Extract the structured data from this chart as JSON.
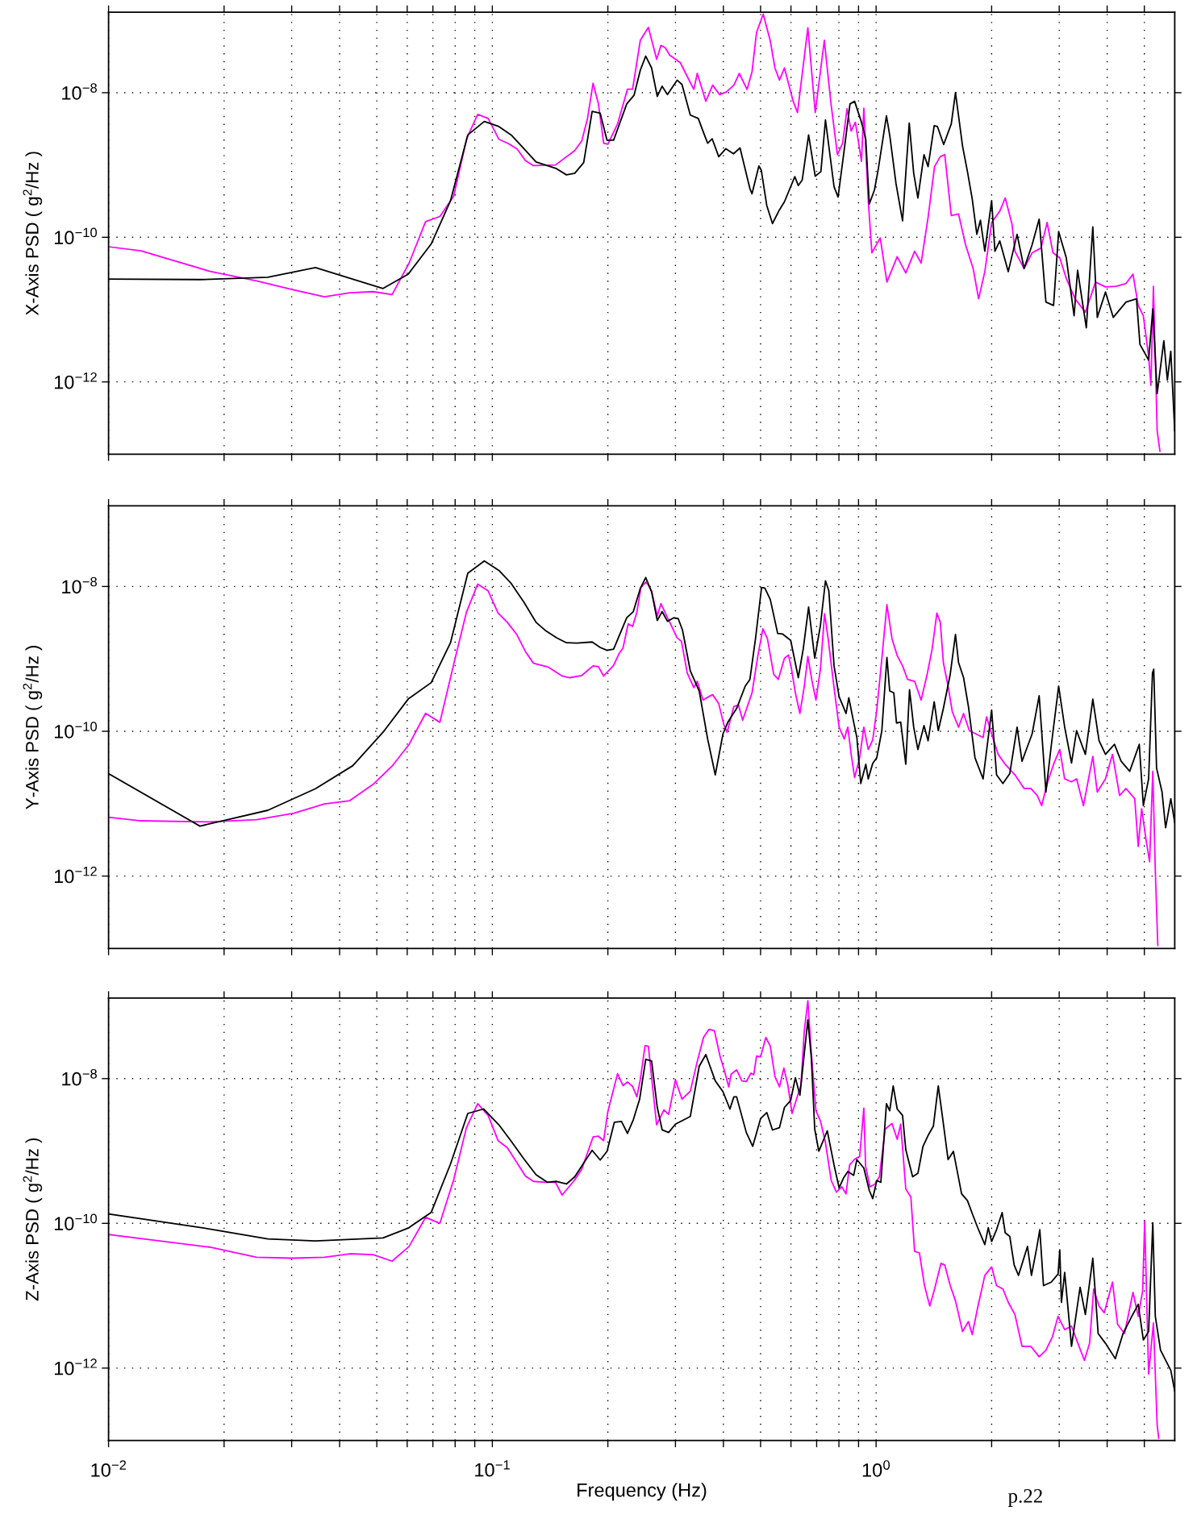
{
  "chart_data": [
    {
      "type": "line",
      "ylabel": "X-Axis PSD ( g$^{2}$/Hz )",
      "log": "xy",
      "grid": true,
      "tick_labels": "y",
      "xlim": [
        0.01,
        6
      ],
      "ylim": [
        1e-13,
        1.3e-07
      ],
      "xticks": [
        {
          "value": 0.01,
          "label": null
        },
        {
          "value": 0.02,
          "label": null
        },
        {
          "value": 0.03,
          "label": null
        },
        {
          "value": 0.04,
          "label": null
        },
        {
          "value": 0.05,
          "label": null
        },
        {
          "value": 0.06,
          "label": null
        },
        {
          "value": 0.07,
          "label": null
        },
        {
          "value": 0.08,
          "label": null
        },
        {
          "value": 0.09,
          "label": null
        },
        {
          "value": 0.1,
          "label": null
        },
        {
          "value": 0.2,
          "label": null
        },
        {
          "value": 0.3,
          "label": null
        },
        {
          "value": 0.4,
          "label": null
        },
        {
          "value": 0.5,
          "label": null
        },
        {
          "value": 0.6,
          "label": null
        },
        {
          "value": 0.7,
          "label": null
        },
        {
          "value": 0.8,
          "label": null
        },
        {
          "value": 0.9,
          "label": null
        },
        {
          "value": 1,
          "label": null
        },
        {
          "value": 2,
          "label": null
        },
        {
          "value": 3,
          "label": null
        },
        {
          "value": 4,
          "label": null
        },
        {
          "value": 5,
          "label": null
        }
      ],
      "yticks": [
        {
          "value": 1e-12,
          "label": "10$^{−12}$"
        },
        {
          "value": 1e-10,
          "label": "10$^{−10}$"
        },
        {
          "value": 1e-08,
          "label": "10$^{−8}$"
        }
      ],
      "series": [
        {
          "color": "#ff00ff",
          "x": [
            0.01,
            0.01215,
            0.0183,
            0.0243,
            0.0301,
            0.0365,
            0.0425,
            0.0489,
            0.0548,
            0.0607,
            0.067,
            0.073,
            0.0793,
            0.0858,
            0.0916,
            0.0975,
            0.104,
            0.11,
            0.116,
            0.122,
            0.128,
            0.146,
            0.164,
            0.171,
            0.177,
            0.183,
            0.189,
            0.195,
            0.2,
            0.212,
            0.225,
            0.232,
            0.243,
            0.255,
            0.268,
            0.275,
            0.282,
            0.29,
            0.309,
            0.319,
            0.335,
            0.342,
            0.36,
            0.375,
            0.391,
            0.407,
            0.426,
            0.44,
            0.461,
            0.475,
            0.488,
            0.508,
            0.53,
            0.545,
            0.56,
            0.577,
            0.608,
            0.624,
            0.664,
            0.694,
            0.733,
            0.762,
            0.793,
            0.818,
            0.84,
            0.861,
            0.883,
            0.916,
            0.929,
            0.954,
            0.975,
            1.025,
            1.067,
            1.135,
            1.195,
            1.26,
            1.31,
            1.366,
            1.42,
            1.47,
            1.51,
            1.57,
            1.64,
            1.71,
            1.79,
            1.85,
            1.92,
            2.0,
            2.1,
            2.17,
            2.26,
            2.3,
            2.43,
            2.55,
            2.69,
            2.79,
            2.89,
            3.01,
            3.13,
            3.3,
            3.51,
            3.73,
            3.96,
            4.22,
            4.48,
            4.67,
            4.82,
            4.97,
            5.13,
            5.2,
            5.28,
            5.4,
            5.49
          ],
          "values": [
            7.4e-11,
            6.5e-11,
            3.4e-11,
            2.5e-11,
            1.89e-11,
            1.5e-11,
            1.71e-11,
            1.77e-11,
            1.61e-11,
            4.4e-11,
            1.65e-10,
            1.94e-10,
            3.7e-10,
            2.35e-09,
            5e-09,
            4.4e-09,
            2.27e-09,
            1.98e-09,
            1.67e-09,
            1.15e-09,
            9.8e-10,
            1e-09,
            1.58e-09,
            2.15e-09,
            4.4e-09,
            1.35e-08,
            7e-09,
            2e-09,
            1.94e-09,
            3.7e-09,
            1.12e-08,
            1.12e-08,
            5.3e-08,
            8e-08,
            2.9e-08,
            4.5e-08,
            4.2e-08,
            3.3e-08,
            2.6e-08,
            1.85e-08,
            1.11e-08,
            1.85e-08,
            7.6e-09,
            1.27e-08,
            9.4e-09,
            1.02e-08,
            1.27e-08,
            1.85e-08,
            1.11e-08,
            1.95e-08,
            6.8e-08,
            1.22e-07,
            5.2e-08,
            2.2e-08,
            1.49e-08,
            2.2e-08,
            7.6e-09,
            5.3e-09,
            7.9e-08,
            5.3e-09,
            5.3e-08,
            7.4e-09,
            1.39e-09,
            2e-09,
            6e-09,
            2.95e-09,
            3.9e-09,
            1.12e-09,
            6.1e-09,
            3.2e-10,
            6.1e-11,
            9.8e-11,
            2.4e-11,
            5.4e-11,
            3.2e-11,
            6.4e-11,
            4.4e-11,
            1.88e-10,
            9.5e-10,
            1.31e-09,
            1.39e-09,
            2e-10,
            2.1e-10,
            7.9e-11,
            3.7e-11,
            1.41e-11,
            3.35e-11,
            1.6e-10,
            2.3e-10,
            3.5e-10,
            1.52e-10,
            6.4e-11,
            3.7e-11,
            6.1e-11,
            7.1e-11,
            1.6e-10,
            6.1e-11,
            5.2e-11,
            2.7e-11,
            1.41e-11,
            9.2e-12,
            2.4e-11,
            2.06e-11,
            2.1e-11,
            2.3e-11,
            3.1e-11,
            1.14e-11,
            8.2e-12,
            2.25e-12,
            9e-13,
            2.1e-11,
            2.1e-13,
            1.1e-13
          ]
        },
        {
          "color": "#000000",
          "x": [
            0.01,
            0.0173,
            0.026,
            0.0346,
            0.0519,
            0.0604,
            0.0693,
            0.0778,
            0.0863,
            0.0953,
            0.104,
            0.112,
            0.121,
            0.13,
            0.147,
            0.156,
            0.164,
            0.173,
            0.182,
            0.191,
            0.199,
            0.207,
            0.224,
            0.234,
            0.243,
            0.251,
            0.26,
            0.269,
            0.277,
            0.286,
            0.303,
            0.312,
            0.328,
            0.344,
            0.357,
            0.364,
            0.374,
            0.389,
            0.406,
            0.425,
            0.442,
            0.469,
            0.475,
            0.495,
            0.502,
            0.519,
            0.537,
            0.56,
            0.577,
            0.614,
            0.627,
            0.642,
            0.667,
            0.694,
            0.718,
            0.738,
            0.777,
            0.796,
            0.826,
            0.855,
            0.879,
            0.916,
            0.94,
            0.96,
            0.99,
            1.014,
            1.064,
            1.086,
            1.127,
            1.172,
            1.22,
            1.253,
            1.285,
            1.333,
            1.366,
            1.417,
            1.445,
            1.5,
            1.57,
            1.61,
            1.68,
            1.73,
            1.78,
            1.83,
            1.87,
            1.92,
            2.0,
            2.04,
            2.1,
            2.21,
            2.33,
            2.43,
            2.55,
            2.66,
            2.77,
            2.9,
            2.99,
            3.13,
            3.28,
            3.35,
            3.53,
            3.67,
            3.77,
            3.96,
            4.15,
            4.48,
            4.77,
            4.87,
            5.13,
            5.26,
            5.4,
            5.62,
            5.74,
            5.86,
            6.0
          ],
          "values": [
            2.64e-11,
            2.6e-11,
            2.8e-11,
            3.8e-11,
            1.96e-11,
            3.1e-11,
            8.1e-11,
            3.2e-10,
            2.6e-09,
            4e-09,
            3.4e-09,
            2.6e-09,
            1.67e-09,
            1.1e-09,
            8.9e-10,
            7.3e-10,
            7.7e-10,
            1.08e-09,
            5.5e-09,
            5.2e-09,
            2.2e-09,
            2.2e-09,
            7e-09,
            9.2e-09,
            2.05e-08,
            3.2e-08,
            2.2e-08,
            8.9e-09,
            1.23e-08,
            9.4e-09,
            1.49e-08,
            1.3e-08,
            4.9e-09,
            4.4e-09,
            2.6e-09,
            2e-09,
            2.3e-09,
            1.3e-09,
            1.68e-09,
            1.43e-09,
            1.72e-09,
            4.7e-10,
            4e-10,
            9.7e-10,
            8.5e-10,
            2.75e-10,
            1.55e-10,
            2.4e-10,
            3.1e-10,
            6.9e-10,
            5.2e-10,
            6.2e-10,
            2.6e-09,
            7e-10,
            8.1e-10,
            4.2e-09,
            5e-10,
            3.6e-10,
            1.63e-09,
            7e-09,
            7.6e-09,
            3.9e-09,
            2.25e-09,
            2.9e-10,
            4.5e-10,
            9e-10,
            4.8e-09,
            2.5e-09,
            5.5e-10,
            1.69e-10,
            3.8e-09,
            7.7e-10,
            3.5e-10,
            1.39e-09,
            9.5e-10,
            3.5e-09,
            3.4e-09,
            1.92e-09,
            3.7e-09,
            1e-08,
            1.82e-09,
            8.1e-10,
            3.4e-10,
            1.1e-10,
            1.72e-10,
            6.4e-11,
            3.2e-10,
            6.4e-11,
            8.9e-11,
            3.35e-11,
            1.1e-10,
            3.7e-11,
            7.9e-11,
            1.78e-10,
            1.27e-11,
            1.14e-11,
            1.2e-10,
            5.2e-11,
            8.2e-12,
            3.5e-11,
            5.6e-12,
            1.39e-10,
            7.8e-12,
            1.75e-11,
            7.8e-12,
            1.27e-11,
            1.41e-11,
            3.3e-12,
            2e-12,
            1.02e-11,
            6.9e-13,
            3.7e-12,
            1.06e-12,
            2.65e-12,
            2.1e-13
          ]
        }
      ]
    },
    {
      "type": "line",
      "ylabel": "Y-Axis PSD ( g$^{2}$/Hz )",
      "log": "xy",
      "grid": true,
      "tick_labels": "y",
      "xlim": [
        0.01,
        6
      ],
      "ylim": [
        1e-13,
        1.3e-07
      ],
      "xticks": [
        {
          "value": 0.01,
          "label": null
        },
        {
          "value": 0.02,
          "label": null
        },
        {
          "value": 0.03,
          "label": null
        },
        {
          "value": 0.04,
          "label": null
        },
        {
          "value": 0.05,
          "label": null
        },
        {
          "value": 0.06,
          "label": null
        },
        {
          "value": 0.07,
          "label": null
        },
        {
          "value": 0.08,
          "label": null
        },
        {
          "value": 0.09,
          "label": null
        },
        {
          "value": 0.1,
          "label": null
        },
        {
          "value": 0.2,
          "label": null
        },
        {
          "value": 0.3,
          "label": null
        },
        {
          "value": 0.4,
          "label": null
        },
        {
          "value": 0.5,
          "label": null
        },
        {
          "value": 0.6,
          "label": null
        },
        {
          "value": 0.7,
          "label": null
        },
        {
          "value": 0.8,
          "label": null
        },
        {
          "value": 0.9,
          "label": null
        },
        {
          "value": 1,
          "label": null
        },
        {
          "value": 2,
          "label": null
        },
        {
          "value": 3,
          "label": null
        },
        {
          "value": 4,
          "label": null
        },
        {
          "value": 5,
          "label": null
        }
      ],
      "yticks": [
        {
          "value": 1e-12,
          "label": "10$^{−12}$"
        },
        {
          "value": 1e-10,
          "label": "10$^{−10}$"
        },
        {
          "value": 1e-08,
          "label": "10$^{−8}$"
        }
      ],
      "series": [
        {
          "color": "#ff00ff",
          "x": [
            0.01,
            0.01215,
            0.0183,
            0.0243,
            0.0304,
            0.0365,
            0.0425,
            0.0489,
            0.0548,
            0.0607,
            0.067,
            0.073,
            0.0793,
            0.0856,
            0.0916,
            0.0975,
            0.1035,
            0.1094,
            0.1156,
            0.122,
            0.128,
            0.14,
            0.152,
            0.159,
            0.171,
            0.183,
            0.189,
            0.195,
            0.207,
            0.214,
            0.219,
            0.226,
            0.232,
            0.238,
            0.244,
            0.252,
            0.26,
            0.269,
            0.275,
            0.286,
            0.29,
            0.303,
            0.311,
            0.322,
            0.335,
            0.342,
            0.354,
            0.366,
            0.375,
            0.389,
            0.401,
            0.409,
            0.426,
            0.438,
            0.449,
            0.475,
            0.492,
            0.507,
            0.521,
            0.541,
            0.556,
            0.577,
            0.591,
            0.601,
            0.616,
            0.633,
            0.65,
            0.664,
            0.681,
            0.697,
            0.716,
            0.734,
            0.75,
            0.777,
            0.801,
            0.826,
            0.844,
            0.861,
            0.879,
            0.906,
            0.929,
            0.954,
            0.98,
            1.004,
            1.035,
            1.067,
            1.1,
            1.135,
            1.172,
            1.208,
            1.26,
            1.31,
            1.36,
            1.4,
            1.44,
            1.47,
            1.497,
            1.54,
            1.58,
            1.64,
            1.69,
            1.75,
            1.82,
            1.9,
            1.94,
            2.0,
            2.08,
            2.17,
            2.3,
            2.43,
            2.53,
            2.63,
            2.7,
            2.8,
            2.9,
            3.01,
            3.1,
            3.23,
            3.33,
            3.47,
            3.67,
            3.77,
            3.96,
            4.13,
            4.31,
            4.48,
            4.72,
            4.82,
            4.92,
            5.05,
            5.16,
            5.26,
            5.34,
            5.42
          ],
          "values": [
            6.5e-12,
            5.8e-12,
            5.6e-12,
            6e-12,
            7.4e-12,
            9.9e-12,
            1.1e-11,
            1.85e-11,
            3.3e-11,
            6.6e-11,
            1.77e-10,
            1.33e-10,
            8.4e-10,
            4.4e-09,
            1.08e-08,
            8.7e-09,
            4.3e-09,
            3.2e-09,
            2.2e-09,
            1.26e-09,
            8.7e-10,
            7.7e-10,
            5.8e-10,
            5.5e-10,
            5.9e-10,
            8e-10,
            7.8e-10,
            5.8e-10,
            8.1e-10,
            1.19e-09,
            1.41e-09,
            3.05e-09,
            2.8e-09,
            4.4e-09,
            9.8e-09,
            1.16e-08,
            8.7e-09,
            3.9e-09,
            5.8e-09,
            3.7e-09,
            3.2e-09,
            1.95e-09,
            1.75e-09,
            6.4e-10,
            4e-10,
            4.9e-10,
            2.7e-10,
            3e-10,
            3.2e-10,
            2.4e-10,
            1.24e-10,
            9.7e-11,
            2.2e-10,
            2.3e-10,
            1.42e-10,
            3.4e-10,
            1.11e-09,
            2.6e-09,
            1.9e-09,
            6.1e-10,
            5.2e-10,
            1.02e-09,
            1.13e-09,
            7.6e-10,
            3.4e-10,
            1.76e-10,
            4.2e-10,
            1.08e-09,
            4.9e-10,
            2.7e-10,
            7.2e-10,
            4.2e-09,
            1.9e-09,
            4e-10,
            1.14e-10,
            7.8e-11,
            1.14e-10,
            4.8e-11,
            2.3e-11,
            4.3e-11,
            1.14e-10,
            5.6e-11,
            7.6e-11,
            1.96e-10,
            1e-09,
            5.6e-09,
            1.9e-09,
            1.11e-09,
            8e-10,
            5.2e-10,
            4.9e-10,
            2.7e-10,
            6.3e-10,
            1.38e-09,
            4.3e-09,
            3.2e-09,
            8.9e-10,
            4.2e-10,
            1.85e-10,
            1.14e-10,
            1.76e-10,
            1.02e-10,
            9.2e-11,
            8.2e-11,
            1.58e-10,
            9.2e-11,
            4.8e-11,
            3.5e-11,
            2.5e-11,
            1.62e-11,
            1.62e-11,
            1.3e-11,
            9.4e-12,
            2e-11,
            3.5e-11,
            5.6e-11,
            2.2e-11,
            2e-11,
            2.2e-11,
            9.4e-12,
            4.5e-11,
            1.45e-11,
            2.2e-11,
            4.8e-11,
            1.3e-11,
            1.62e-11,
            1.17e-11,
            2.56e-12,
            8.5e-12,
            3.2e-12,
            1.58e-12,
            2.8e-11,
            1.2e-12,
            1.1e-13
          ]
        },
        {
          "color": "#000000",
          "x": [
            0.01,
            0.0173,
            0.026,
            0.0346,
            0.0433,
            0.0519,
            0.0604,
            0.0693,
            0.0778,
            0.0863,
            0.0953,
            0.104,
            0.112,
            0.121,
            0.13,
            0.138,
            0.147,
            0.156,
            0.166,
            0.182,
            0.191,
            0.199,
            0.207,
            0.224,
            0.233,
            0.243,
            0.251,
            0.26,
            0.269,
            0.277,
            0.286,
            0.297,
            0.305,
            0.313,
            0.328,
            0.346,
            0.364,
            0.381,
            0.399,
            0.411,
            0.433,
            0.456,
            0.469,
            0.485,
            0.503,
            0.513,
            0.53,
            0.554,
            0.571,
            0.599,
            0.627,
            0.646,
            0.667,
            0.692,
            0.716,
            0.738,
            0.753,
            0.777,
            0.801,
            0.835,
            0.849,
            0.874,
            0.891,
            0.912,
            0.94,
            0.954,
            0.98,
            1.004,
            1.035,
            1.067,
            1.085,
            1.112,
            1.13,
            1.159,
            1.195,
            1.222,
            1.253,
            1.285,
            1.333,
            1.366,
            1.417,
            1.452,
            1.497,
            1.56,
            1.61,
            1.64,
            1.69,
            1.74,
            1.81,
            1.9,
            2.0,
            2.06,
            2.14,
            2.23,
            2.33,
            2.4,
            2.55,
            2.66,
            2.77,
            2.86,
            2.99,
            3.1,
            3.23,
            3.33,
            3.51,
            3.67,
            3.81,
            3.96,
            4.18,
            4.35,
            4.58,
            4.85,
            4.97,
            5.13,
            5.25,
            5.29,
            5.38,
            5.56,
            5.68,
            5.86,
            6.0
          ],
          "values": [
            2.6e-11,
            4.9e-12,
            8.1e-12,
            1.61e-11,
            3.35e-11,
            9.7e-11,
            2.8e-10,
            4.7e-10,
            1.67e-09,
            1.52e-08,
            2.25e-08,
            1.67e-08,
            1.1e-08,
            6e-09,
            3.2e-09,
            2.43e-09,
            1.96e-09,
            1.67e-09,
            1.65e-09,
            1.71e-09,
            1.44e-09,
            1.31e-09,
            1.36e-09,
            3.7e-09,
            4.5e-09,
            9.4e-09,
            1.33e-08,
            8.4e-09,
            3.4e-09,
            4.5e-09,
            3.3e-09,
            3.7e-09,
            3.6e-09,
            2.5e-09,
            6.8e-10,
            3.6e-10,
            7.8e-11,
            2.5e-11,
            9.2e-11,
            1.34e-10,
            2.06e-10,
            4.2e-10,
            5.2e-10,
            1.9e-09,
            9.7e-09,
            9.5e-09,
            6.6e-09,
            2.25e-09,
            2.2e-09,
            1.8e-09,
            5.5e-10,
            1.38e-09,
            5.2e-09,
            1.02e-09,
            2.9e-09,
            1.2e-08,
            8.7e-09,
            8e-10,
            3e-10,
            1.76e-10,
            2.9e-10,
            1.34e-10,
            8.2e-11,
            1.9e-11,
            3.5e-11,
            2.2e-11,
            3.6e-11,
            4.3e-11,
            1.02e-10,
            1.05e-09,
            3.6e-10,
            3.4e-10,
            1.3e-10,
            1.34e-10,
            3.5e-11,
            3.75e-10,
            1.14e-10,
            5.6e-11,
            1.2e-10,
            7.4e-11,
            2.56e-10,
            1.02e-10,
            2.06e-10,
            6.1e-10,
            2.17e-09,
            8.9e-10,
            5.5e-10,
            2.2e-10,
            4.3e-11,
            2.2e-11,
            1.96e-10,
            2.5e-11,
            1.9e-11,
            2.6e-11,
            1.14e-10,
            3.85e-11,
            9.2e-11,
            3.1e-10,
            1.45e-11,
            6.3e-11,
            4.2e-10,
            1.14e-10,
            3.65e-11,
            1.02e-10,
            4.8e-11,
            2.77e-10,
            7.4e-11,
            4.8e-11,
            6.6e-11,
            3.85e-11,
            2.8e-11,
            6.6e-11,
            9.4e-12,
            2.2e-11,
            6.4e-10,
            7.2e-10,
            3.1e-11,
            1.45e-11,
            4.65e-12,
            1.17e-11,
            5.5e-12
          ]
        }
      ]
    },
    {
      "type": "line",
      "ylabel": "Z-Axis PSD ( g$^{2}$/Hz )",
      "xlabel": "Frequency (Hz)",
      "log": "xy",
      "grid": true,
      "xlim": [
        0.01,
        6
      ],
      "ylim": [
        1e-13,
        1.3e-07
      ],
      "xticks": [
        {
          "value": 0.01,
          "label": "10$^{−2}$"
        },
        {
          "value": 0.02,
          "label": null
        },
        {
          "value": 0.03,
          "label": null
        },
        {
          "value": 0.04,
          "label": null
        },
        {
          "value": 0.05,
          "label": null
        },
        {
          "value": 0.06,
          "label": null
        },
        {
          "value": 0.07,
          "label": null
        },
        {
          "value": 0.08,
          "label": null
        },
        {
          "value": 0.09,
          "label": null
        },
        {
          "value": 0.1,
          "label": "10$^{−1}$"
        },
        {
          "value": 0.2,
          "label": null
        },
        {
          "value": 0.3,
          "label": null
        },
        {
          "value": 0.4,
          "label": null
        },
        {
          "value": 0.5,
          "label": null
        },
        {
          "value": 0.6,
          "label": null
        },
        {
          "value": 0.7,
          "label": null
        },
        {
          "value": 0.8,
          "label": null
        },
        {
          "value": 0.9,
          "label": null
        },
        {
          "value": 1,
          "label": "10$^{0}$"
        },
        {
          "value": 2,
          "label": null
        },
        {
          "value": 3,
          "label": null
        },
        {
          "value": 4,
          "label": null
        },
        {
          "value": 5,
          "label": null
        }
      ],
      "yticks": [
        {
          "value": 1e-12,
          "label": "10$^{−12}$"
        },
        {
          "value": 1e-10,
          "label": "10$^{−10}$"
        },
        {
          "value": 1e-08,
          "label": "10$^{−8}$"
        }
      ],
      "annotations": [
        "p.22"
      ],
      "series": [
        {
          "color": "#ff00ff",
          "x": [
            0.01,
            0.0183,
            0.0243,
            0.0301,
            0.0365,
            0.0425,
            0.0489,
            0.0548,
            0.0607,
            0.067,
            0.073,
            0.0793,
            0.0856,
            0.0916,
            0.0975,
            0.1035,
            0.1094,
            0.122,
            0.128,
            0.137,
            0.146,
            0.152,
            0.164,
            0.171,
            0.183,
            0.189,
            0.195,
            0.2,
            0.212,
            0.219,
            0.225,
            0.232,
            0.238,
            0.243,
            0.25,
            0.255,
            0.268,
            0.28,
            0.288,
            0.3,
            0.312,
            0.328,
            0.342,
            0.355,
            0.367,
            0.379,
            0.392,
            0.402,
            0.413,
            0.419,
            0.433,
            0.447,
            0.459,
            0.472,
            0.48,
            0.488,
            0.5,
            0.516,
            0.53,
            0.545,
            0.56,
            0.575,
            0.589,
            0.604,
            0.621,
            0.637,
            0.65,
            0.664,
            0.678,
            0.697,
            0.716,
            0.738,
            0.764,
            0.788,
            0.814,
            0.835,
            0.853,
            0.879,
            0.906,
            0.929,
            0.939,
            0.964,
            0.994,
            1.02,
            1.056,
            1.1,
            1.135,
            1.159,
            1.195,
            1.232,
            1.26,
            1.297,
            1.337,
            1.38,
            1.42,
            1.476,
            1.51,
            1.56,
            1.61,
            1.68,
            1.74,
            1.78,
            1.84,
            1.92,
            2.0,
            2.06,
            2.14,
            2.21,
            2.3,
            2.4,
            2.53,
            2.66,
            2.77,
            2.88,
            2.98,
            3.1,
            3.23,
            3.33,
            3.49,
            3.6,
            3.69,
            3.81,
            3.93,
            4.13,
            4.26,
            4.44,
            4.67,
            4.82,
            4.95,
            5.01,
            5.13,
            5.28,
            5.4,
            5.45
          ],
          "values": [
            7e-11,
            4.7e-11,
            3.4e-11,
            3.3e-11,
            3.4e-11,
            3.8e-11,
            3.7e-11,
            3e-11,
            4.8e-11,
            1.21e-10,
            1e-10,
            4e-10,
            2.1e-09,
            4.5e-09,
            3.1e-09,
            1.39e-09,
            1.11e-09,
            4.5e-10,
            3.8e-10,
            3.7e-10,
            3.7e-10,
            2.46e-10,
            4e-10,
            5.6e-10,
            1.56e-09,
            1.6e-09,
            1.39e-09,
            3.5e-09,
            1.17e-08,
            8e-09,
            9e-09,
            7.8e-09,
            5.6e-09,
            9.7e-09,
            2.85e-08,
            2.8e-08,
            2.3e-09,
            3.7e-09,
            3.2e-09,
            9.6e-09,
            5.2e-09,
            6.7e-09,
            1.73e-08,
            3.7e-08,
            4.8e-08,
            4.6e-08,
            2.04e-08,
            1.32e-08,
            7.7e-09,
            1.15e-08,
            1.32e-08,
            9.3e-09,
            9.1e-09,
            1.19e-08,
            1.13e-08,
            2.04e-08,
            2e-08,
            3.7e-08,
            2.8e-08,
            1.07e-08,
            7.7e-09,
            1.4e-08,
            8.1e-09,
            3.3e-09,
            5.3e-09,
            8.1e-09,
            4.6e-08,
            1.19e-07,
            2.25e-08,
            3.6e-09,
            2.6e-09,
            1.3e-09,
            3.9e-10,
            2.7e-10,
            3.2e-10,
            2.56e-10,
            6.4e-10,
            7.7e-10,
            8.4e-10,
            3.9e-09,
            6.1e-10,
            3.2e-10,
            3.5e-10,
            4.4e-10,
            2e-09,
            2.4e-09,
            1.45e-09,
            2.35e-09,
            3e-10,
            2.3e-10,
            4.1e-11,
            3.9e-11,
            1.38e-11,
            7.2e-12,
            1.24e-11,
            2.8e-11,
            2.65e-11,
            1.38e-11,
            8.5e-12,
            3.2e-12,
            4.4e-12,
            2.9e-12,
            6.9e-12,
            1.91e-11,
            2.5e-11,
            1.38e-11,
            1.24e-11,
            8.1e-12,
            5.5e-12,
            2e-12,
            2e-12,
            1.43e-12,
            1.77e-12,
            2.7e-12,
            5.2e-12,
            3.4e-12,
            3.8e-12,
            2.45e-12,
            1.28e-12,
            2.2e-12,
            1.24e-11,
            7.2e-12,
            5.8e-12,
            1.54e-11,
            4e-12,
            3e-12,
            1.11e-11,
            5.2e-12,
            1.17e-11,
            1.08e-10,
            8.3e-13,
            4.2e-12,
            1.64e-13,
            1.07e-13
          ]
        },
        {
          "color": "#000000",
          "x": [
            0.01,
            0.0173,
            0.026,
            0.0346,
            0.0519,
            0.0604,
            0.0693,
            0.0778,
            0.0863,
            0.0949,
            0.104,
            0.112,
            0.121,
            0.13,
            0.139,
            0.147,
            0.156,
            0.164,
            0.173,
            0.182,
            0.191,
            0.199,
            0.208,
            0.217,
            0.225,
            0.233,
            0.242,
            0.251,
            0.26,
            0.269,
            0.277,
            0.288,
            0.3,
            0.328,
            0.346,
            0.36,
            0.381,
            0.399,
            0.416,
            0.426,
            0.433,
            0.459,
            0.477,
            0.5,
            0.519,
            0.537,
            0.56,
            0.577,
            0.599,
            0.616,
            0.633,
            0.664,
            0.678,
            0.692,
            0.709,
            0.746,
            0.777,
            0.801,
            0.822,
            0.844,
            0.874,
            0.891,
            0.929,
            0.96,
            0.98,
            1.004,
            1.029,
            1.064,
            1.085,
            1.108,
            1.135,
            1.172,
            1.195,
            1.245,
            1.285,
            1.325,
            1.366,
            1.41,
            1.452,
            1.49,
            1.54,
            1.59,
            1.67,
            1.73,
            1.79,
            1.84,
            1.92,
            1.96,
            2.0,
            2.06,
            2.13,
            2.17,
            2.23,
            2.29,
            2.35,
            2.48,
            2.54,
            2.62,
            2.67,
            2.73,
            2.86,
            2.98,
            3.01,
            3.04,
            3.1,
            3.23,
            3.4,
            3.51,
            3.67,
            3.79,
            3.96,
            4.2,
            4.4,
            4.62,
            4.82,
            4.97,
            5.13,
            5.26,
            5.34,
            5.51,
            5.71,
            5.86,
            6.0
          ],
          "values": [
            1.35e-10,
            8.8e-11,
            6.1e-11,
            5.7e-11,
            6.3e-11,
            8.6e-11,
            1.42e-10,
            6.6e-10,
            3.3e-09,
            3.8e-09,
            2.3e-09,
            1.36e-09,
            7.7e-10,
            4.7e-10,
            3.7e-10,
            3.8e-10,
            3.5e-10,
            4.4e-10,
            6.8e-10,
            1.02e-09,
            7.5e-10,
            9.9e-10,
            2.5e-09,
            2.56e-09,
            1.75e-09,
            2.7e-09,
            5.2e-09,
            1.85e-08,
            1.75e-08,
            4e-09,
            1.96e-09,
            1.8e-09,
            2.35e-09,
            3e-09,
            1.48e-08,
            2.15e-08,
            9.3e-09,
            6.6e-09,
            3.8e-09,
            5.6e-09,
            5.6e-09,
            1.8e-09,
            1.16e-09,
            2.8e-09,
            3.4e-09,
            1.95e-09,
            2.1e-09,
            4e-09,
            5e-09,
            1.03e-08,
            5.9e-09,
            6.5e-08,
            1.93e-08,
            2e-09,
            9.9e-10,
            1.9e-09,
            6.4e-10,
            3.1e-10,
            4.2e-10,
            5.2e-10,
            4.6e-10,
            7.6e-10,
            5.8e-10,
            2.85e-10,
            2.2e-10,
            3.9e-10,
            3.7e-10,
            4.5e-09,
            3.6e-09,
            7.9e-09,
            3.8e-09,
            3.1e-09,
            1.04e-09,
            4.4e-10,
            4.9e-10,
            1.16e-09,
            1.64e-09,
            2.2e-09,
            7.9e-09,
            2.9e-09,
            7.6e-10,
            9.9e-10,
            2.56e-10,
            2.06e-10,
            1.27e-10,
            8.7e-11,
            5.1e-11,
            8.7e-11,
            5.6e-11,
            8.2e-11,
            1.41e-10,
            7.4e-11,
            6.6e-11,
            2.65e-11,
            1.91e-11,
            4.8e-11,
            1.91e-11,
            4.5e-11,
            8.2e-11,
            1.38e-11,
            1.54e-11,
            2e-11,
            4.3e-11,
            8.1e-12,
            2.1e-11,
            2e-12,
            1.31e-11,
            5.5e-12,
            3.3e-11,
            3e-12,
            2.2e-12,
            1.35e-12,
            3e-12,
            5e-12,
            7.6e-12,
            2.45e-12,
            3.2e-12,
            1.02e-10,
            5.2e-12,
            1.77e-12,
            1.22e-12,
            9.3e-13,
            4.8e-13
          ]
        }
      ]
    }
  ]
}
